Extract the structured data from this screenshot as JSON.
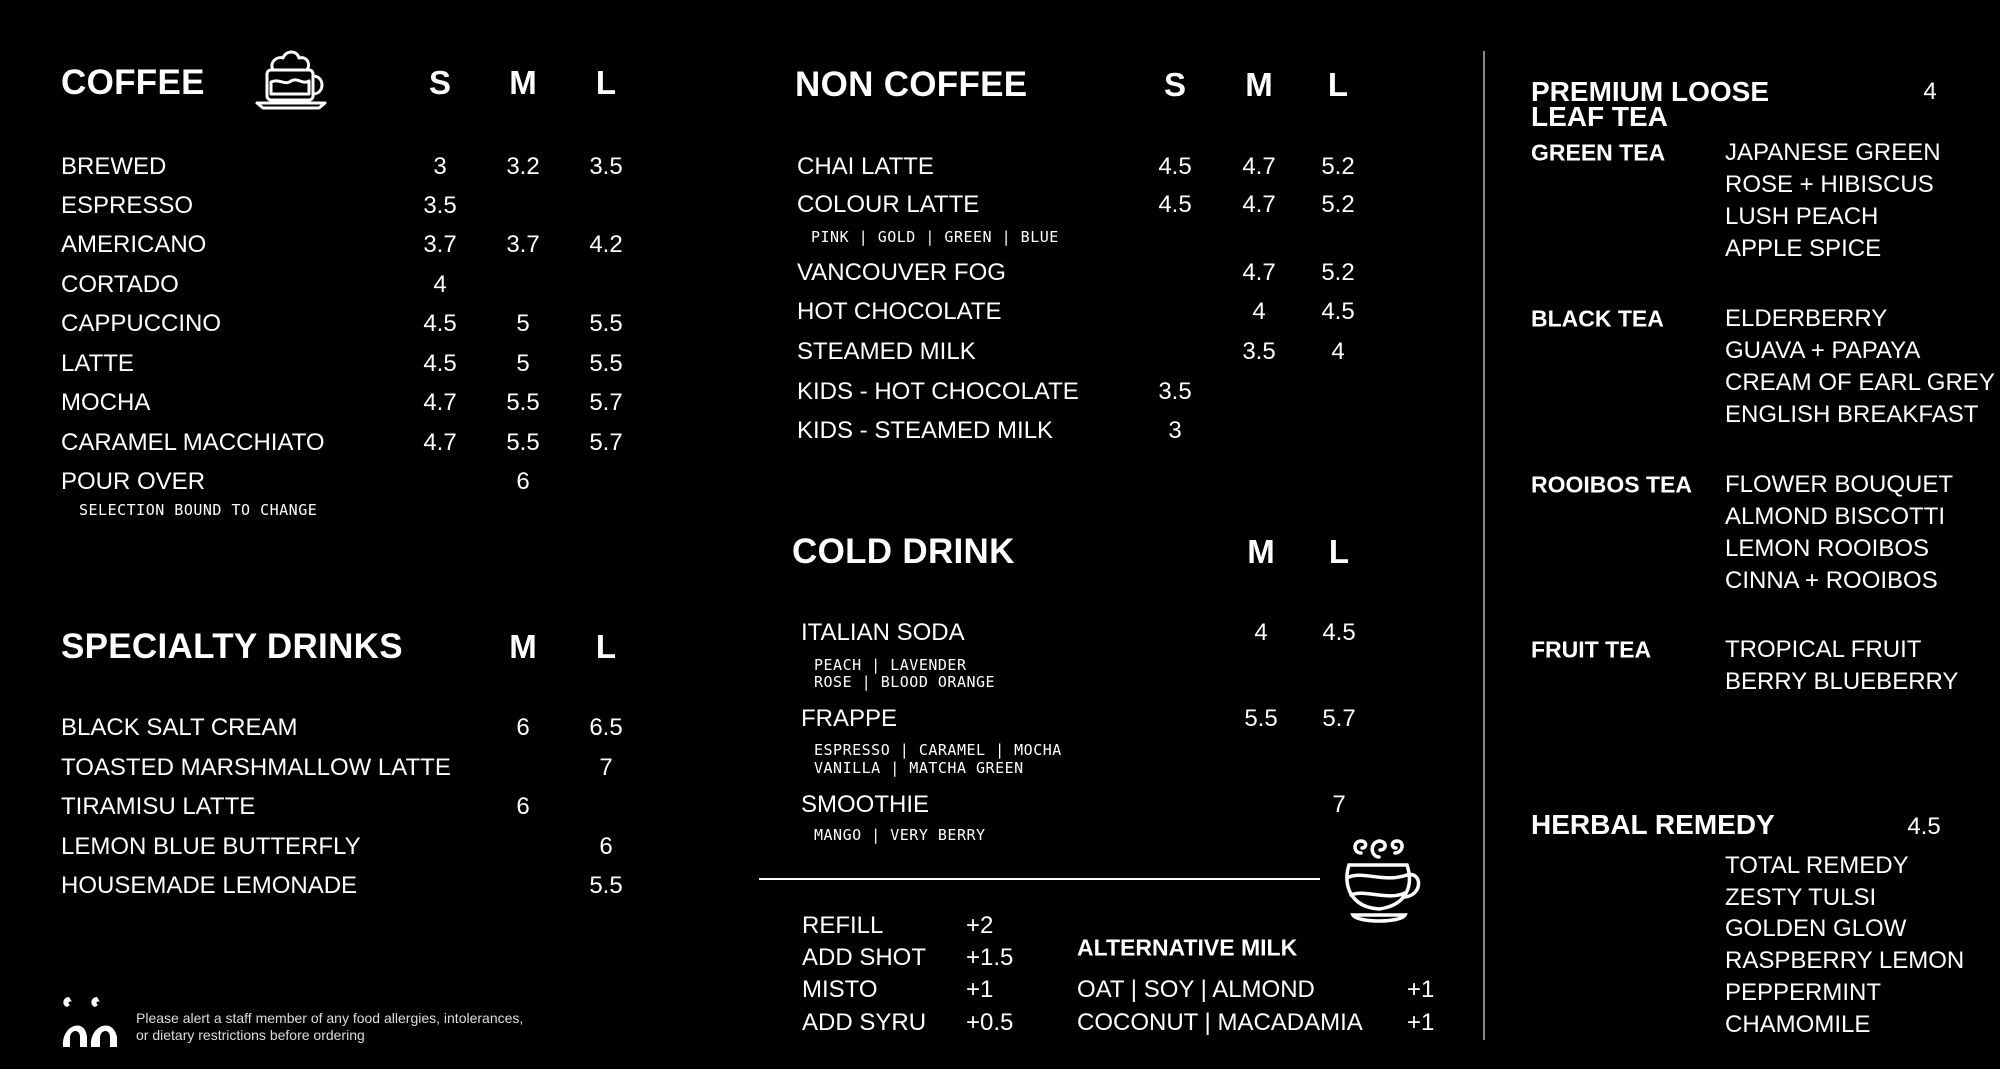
{
  "coffee": {
    "title": "COFFEE",
    "sizes": [
      "S",
      "M",
      "L"
    ],
    "items": [
      {
        "name": "BREWED",
        "prices": [
          "3",
          "3.2",
          "3.5"
        ]
      },
      {
        "name": "ESPRESSO",
        "prices": [
          "3.5",
          "",
          ""
        ]
      },
      {
        "name": "AMERICANO",
        "prices": [
          "3.7",
          "3.7",
          "4.2"
        ]
      },
      {
        "name": "CORTADO",
        "prices": [
          "4",
          "",
          ""
        ]
      },
      {
        "name": "CAPPUCCINO",
        "prices": [
          "4.5",
          "5",
          "5.5"
        ]
      },
      {
        "name": "LATTE",
        "prices": [
          "4.5",
          "5",
          "5.5"
        ]
      },
      {
        "name": "MOCHA",
        "prices": [
          "4.7",
          "5.5",
          "5.7"
        ]
      },
      {
        "name": "CARAMEL MACCHIATO",
        "prices": [
          "4.7",
          "5.5",
          "5.7"
        ]
      },
      {
        "name": "POUR OVER",
        "prices": [
          "",
          "6",
          ""
        ]
      }
    ],
    "note": "SELECTION BOUND TO CHANGE"
  },
  "specialty": {
    "title": "SPECIALTY DRINKS",
    "sizes": [
      "M",
      "L"
    ],
    "items": [
      {
        "name": "BLACK SALT CREAM",
        "prices": [
          "6",
          "6.5"
        ]
      },
      {
        "name": "TOASTED MARSHMALLOW LATTE",
        "prices": [
          "",
          "7"
        ]
      },
      {
        "name": "TIRAMISU LATTE",
        "prices": [
          "6",
          ""
        ]
      },
      {
        "name": "LEMON BLUE BUTTERFLY",
        "prices": [
          "",
          "6"
        ]
      },
      {
        "name": "HOUSEMADE LEMONADE",
        "prices": [
          "",
          "5.5"
        ]
      }
    ]
  },
  "non_coffee": {
    "title": "NON COFFEE",
    "sizes": [
      "S",
      "M",
      "L"
    ],
    "items": [
      {
        "name": "CHAI LATTE",
        "prices": [
          "4.5",
          "4.7",
          "5.2"
        ]
      },
      {
        "name": "COLOUR LATTE",
        "prices": [
          "4.5",
          "4.7",
          "5.2"
        ],
        "options": [
          "PINK | GOLD | GREEN | BLUE"
        ]
      },
      {
        "name": "VANCOUVER FOG",
        "prices": [
          "",
          "4.7",
          "5.2"
        ]
      },
      {
        "name": "HOT CHOCOLATE",
        "prices": [
          "",
          "4",
          "4.5"
        ]
      },
      {
        "name": "STEAMED MILK",
        "prices": [
          "",
          "3.5",
          "4"
        ]
      },
      {
        "name": "KIDS - HOT CHOCOLATE",
        "prices": [
          "3.5",
          "",
          ""
        ]
      },
      {
        "name": "KIDS - STEAMED MILK",
        "prices": [
          "3",
          "",
          ""
        ]
      }
    ]
  },
  "cold_drink": {
    "title": "COLD DRINK",
    "sizes": [
      "M",
      "L"
    ],
    "items": [
      {
        "name": "ITALIAN SODA",
        "prices": [
          "4",
          "4.5"
        ],
        "options": [
          "PEACH | LAVENDER",
          "ROSE | BLOOD ORANGE"
        ]
      },
      {
        "name": "FRAPPE",
        "prices": [
          "5.5",
          "5.7"
        ],
        "options": [
          "ESPRESSO | CARAMEL | MOCHA",
          "VANILLA | MATCHA GREEN"
        ]
      },
      {
        "name": "SMOOTHIE",
        "prices": [
          "",
          "7"
        ],
        "options": [
          "MANGO | VERY BERRY"
        ]
      }
    ]
  },
  "extras": [
    {
      "name": "REFILL",
      "price": "+2"
    },
    {
      "name": "ADD SHOT",
      "price": "+1.5"
    },
    {
      "name": "MISTO",
      "price": "+1"
    },
    {
      "name": "ADD SYRU",
      "price": "+0.5"
    }
  ],
  "alternative_milk": {
    "title": "ALTERNATIVE MILK",
    "items": [
      {
        "name": "OAT | SOY | ALMOND",
        "price": "+1"
      },
      {
        "name": "COCONUT | MACADAMIA",
        "price": "+1"
      }
    ]
  },
  "tea": {
    "title_line1": "PREMIUM LOOSE",
    "title_line2": "LEAF TEA",
    "price": "4",
    "groups": [
      {
        "name": "GREEN TEA",
        "items": [
          "JAPANESE GREEN",
          "ROSE + HIBISCUS",
          "LUSH PEACH",
          "APPLE SPICE"
        ]
      },
      {
        "name": "BLACK TEA",
        "items": [
          "ELDERBERRY",
          "GUAVA + PAPAYA",
          "CREAM OF EARL GREY",
          "ENGLISH BREAKFAST"
        ]
      },
      {
        "name": "ROOIBOS TEA",
        "items": [
          "FLOWER BOUQUET",
          "ALMOND BISCOTTI",
          "LEMON ROOIBOS",
          "CINNA + ROOIBOS"
        ]
      },
      {
        "name": "FRUIT TEA",
        "items": [
          "TROPICAL FRUIT",
          "BERRY BLUEBERRY"
        ]
      }
    ]
  },
  "herbal": {
    "title": "HERBAL REMEDY",
    "price": "4.5",
    "items": [
      "TOTAL REMEDY",
      "ZESTY TULSI",
      "GOLDEN GLOW",
      "RASPBERRY LEMON",
      "PEPPERMINT",
      "CHAMOMILE"
    ]
  },
  "footer": {
    "allergy_line1": "Please alert a staff member of any food allergies, intolerances,",
    "allergy_line2": "or dietary restrictions before ordering"
  },
  "colors": {
    "background": "#000000",
    "text": "#ffffff"
  }
}
